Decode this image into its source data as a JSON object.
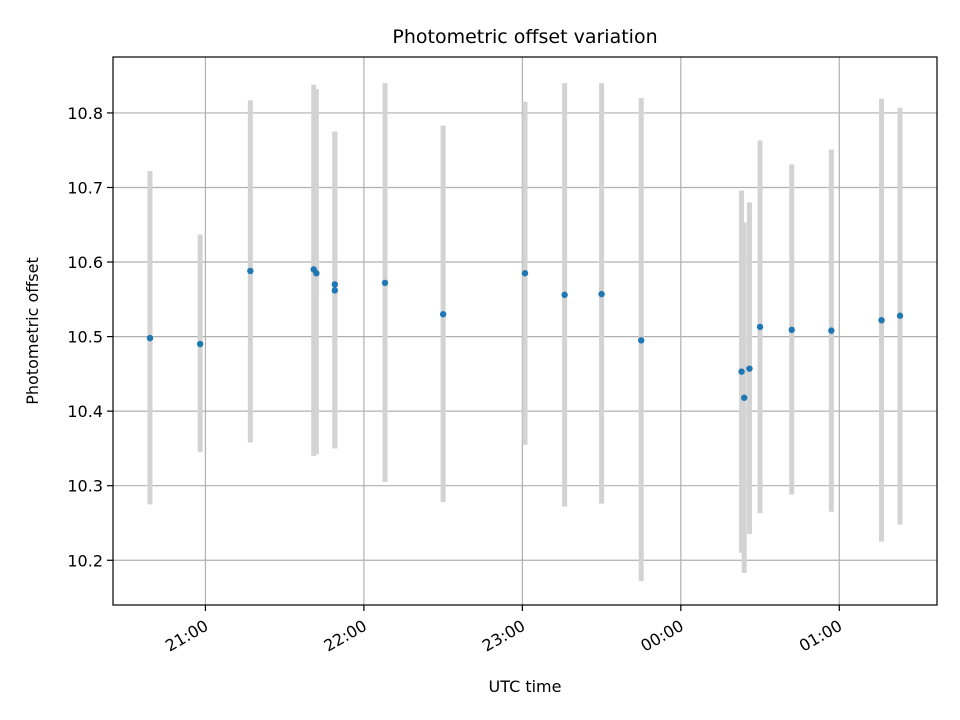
{
  "chart_data": {
    "type": "scatter",
    "title": "Photometric offset variation",
    "xlabel": "UTC time",
    "ylabel": "Photometric offset",
    "x_ticks": [
      "21:00",
      "22:00",
      "23:00",
      "00:00",
      "01:00"
    ],
    "x_tick_times": [
      "2000-01-01T21:00",
      "2000-01-01T22:00",
      "2000-01-01T23:00",
      "2000-01-02T00:00",
      "2000-01-02T01:00"
    ],
    "y_ticks": [
      "10.2",
      "10.3",
      "10.4",
      "10.5",
      "10.6",
      "10.7",
      "10.8"
    ],
    "y_tick_values": [
      10.2,
      10.3,
      10.4,
      10.5,
      10.6,
      10.7,
      10.8
    ],
    "xlim": [
      "2000-01-01T20:25",
      "2000-01-02T01:37"
    ],
    "ylim": [
      10.14,
      10.875
    ],
    "grid": true,
    "colors": {
      "point": "#1f77b4",
      "errorbar": "#d3d3d3",
      "grid": "#b0b0b0"
    },
    "points": [
      {
        "x": "2000-01-01T20:39",
        "y": 10.498,
        "ylow": 10.275,
        "yhigh": 10.722
      },
      {
        "x": "2000-01-01T20:58",
        "y": 10.49,
        "ylow": 10.345,
        "yhigh": 10.637
      },
      {
        "x": "2000-01-01T21:17",
        "y": 10.588,
        "ylow": 10.358,
        "yhigh": 10.817
      },
      {
        "x": "2000-01-01T21:41",
        "y": 10.59,
        "ylow": 10.34,
        "yhigh": 10.838
      },
      {
        "x": "2000-01-01T21:42",
        "y": 10.585,
        "ylow": 10.342,
        "yhigh": 10.832
      },
      {
        "x": "2000-01-01T21:49",
        "y": 10.57,
        "ylow": 10.35,
        "yhigh": 10.775
      },
      {
        "x": "2000-01-01T21:49",
        "y": 10.562,
        "ylow": 10.35,
        "yhigh": 10.775
      },
      {
        "x": "2000-01-01T22:08",
        "y": 10.572,
        "ylow": 10.305,
        "yhigh": 10.84
      },
      {
        "x": "2000-01-01T22:30",
        "y": 10.53,
        "ylow": 10.278,
        "yhigh": 10.783
      },
      {
        "x": "2000-01-01T23:01",
        "y": 10.585,
        "ylow": 10.355,
        "yhigh": 10.815
      },
      {
        "x": "2000-01-01T23:16",
        "y": 10.556,
        "ylow": 10.272,
        "yhigh": 10.84
      },
      {
        "x": "2000-01-01T23:30",
        "y": 10.557,
        "ylow": 10.276,
        "yhigh": 10.84
      },
      {
        "x": "2000-01-01T23:45",
        "y": 10.495,
        "ylow": 10.172,
        "yhigh": 10.82
      },
      {
        "x": "2000-01-02T00:23",
        "y": 10.453,
        "ylow": 10.21,
        "yhigh": 10.696
      },
      {
        "x": "2000-01-02T00:24",
        "y": 10.418,
        "ylow": 10.183,
        "yhigh": 10.653
      },
      {
        "x": "2000-01-02T00:26",
        "y": 10.457,
        "ylow": 10.235,
        "yhigh": 10.68
      },
      {
        "x": "2000-01-02T00:30",
        "y": 10.513,
        "ylow": 10.263,
        "yhigh": 10.763
      },
      {
        "x": "2000-01-02T00:42",
        "y": 10.509,
        "ylow": 10.288,
        "yhigh": 10.731
      },
      {
        "x": "2000-01-02T00:57",
        "y": 10.508,
        "ylow": 10.265,
        "yhigh": 10.751
      },
      {
        "x": "2000-01-02T01:16",
        "y": 10.522,
        "ylow": 10.225,
        "yhigh": 10.819
      },
      {
        "x": "2000-01-02T01:23",
        "y": 10.528,
        "ylow": 10.248,
        "yhigh": 10.807
      }
    ]
  }
}
